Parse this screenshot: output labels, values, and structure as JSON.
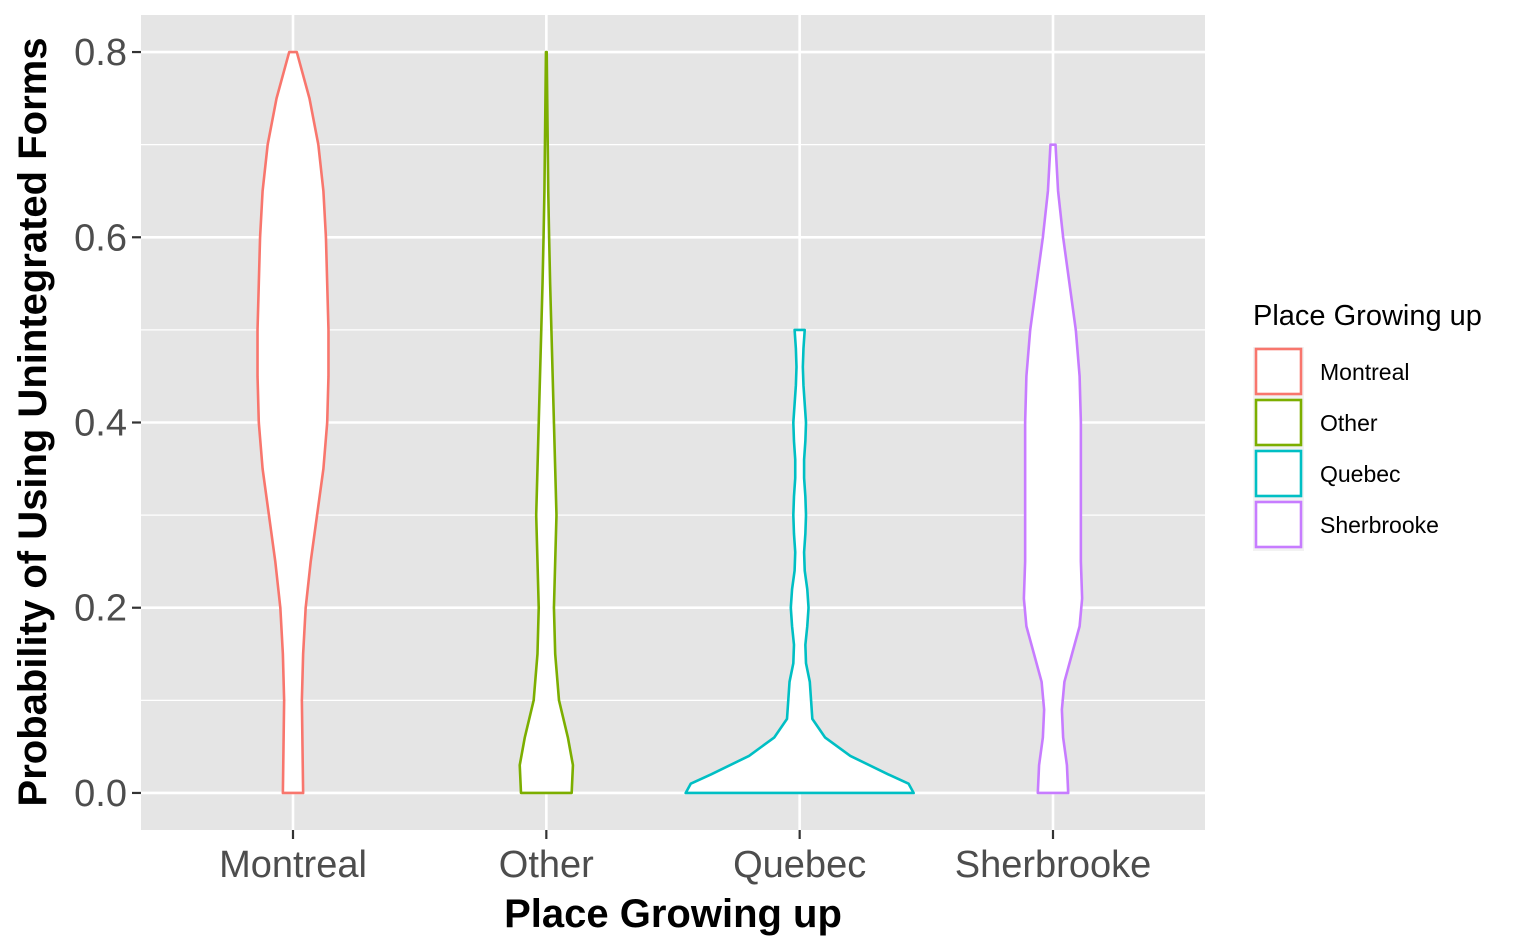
{
  "chart_data": {
    "type": "violin",
    "title": "",
    "xlabel": "Place Growing up",
    "ylabel": "Probability of Using Unintegrated Forms",
    "ylim": [
      -0.04,
      0.84
    ],
    "yticks": [
      "0.0",
      "0.2",
      "0.4",
      "0.6",
      "0.8"
    ],
    "ytick_values": [
      0,
      0.2,
      0.4,
      0.6,
      0.8
    ],
    "categories": [
      "Montreal",
      "Other",
      "Quebec",
      "Sherbrooke"
    ],
    "grid": true,
    "legend": {
      "title": "Place Growing up",
      "position": "right",
      "entries": [
        "Montreal",
        "Other",
        "Quebec",
        "Sherbrooke"
      ]
    },
    "colors": {
      "Montreal": "#f8766d",
      "Other": "#7cae00",
      "Quebec": "#00bfc4",
      "Sherbrooke": "#c77cff",
      "panel": "#e5e5e5",
      "grid": "#ffffff",
      "fill": "#ffffff"
    },
    "series": [
      {
        "name": "Montreal",
        "min": 0.0,
        "max": 0.8,
        "profile": [
          [
            0.0,
            0.08
          ],
          [
            0.05,
            0.075
          ],
          [
            0.1,
            0.07
          ],
          [
            0.15,
            0.08
          ],
          [
            0.2,
            0.1
          ],
          [
            0.25,
            0.14
          ],
          [
            0.3,
            0.19
          ],
          [
            0.35,
            0.24
          ],
          [
            0.4,
            0.27
          ],
          [
            0.45,
            0.28
          ],
          [
            0.5,
            0.28
          ],
          [
            0.55,
            0.27
          ],
          [
            0.6,
            0.26
          ],
          [
            0.65,
            0.24
          ],
          [
            0.7,
            0.2
          ],
          [
            0.75,
            0.13
          ],
          [
            0.8,
            0.03
          ]
        ]
      },
      {
        "name": "Other",
        "min": 0.0,
        "max": 0.8,
        "profile": [
          [
            0.0,
            0.2
          ],
          [
            0.03,
            0.21
          ],
          [
            0.06,
            0.17
          ],
          [
            0.1,
            0.1
          ],
          [
            0.15,
            0.07
          ],
          [
            0.2,
            0.06
          ],
          [
            0.25,
            0.07
          ],
          [
            0.3,
            0.08
          ],
          [
            0.35,
            0.07
          ],
          [
            0.4,
            0.06
          ],
          [
            0.45,
            0.05
          ],
          [
            0.5,
            0.04
          ],
          [
            0.55,
            0.03
          ],
          [
            0.6,
            0.022
          ],
          [
            0.65,
            0.015
          ],
          [
            0.7,
            0.011
          ],
          [
            0.75,
            0.007
          ],
          [
            0.8,
            0.003
          ]
        ]
      },
      {
        "name": "Quebec",
        "min": 0.0,
        "max": 0.5,
        "profile": [
          [
            0.0,
            0.9
          ],
          [
            0.01,
            0.86
          ],
          [
            0.02,
            0.7
          ],
          [
            0.04,
            0.4
          ],
          [
            0.06,
            0.2
          ],
          [
            0.08,
            0.1
          ],
          [
            0.1,
            0.09
          ],
          [
            0.12,
            0.08
          ],
          [
            0.14,
            0.05
          ],
          [
            0.16,
            0.045
          ],
          [
            0.18,
            0.06
          ],
          [
            0.2,
            0.07
          ],
          [
            0.22,
            0.06
          ],
          [
            0.24,
            0.04
          ],
          [
            0.26,
            0.035
          ],
          [
            0.28,
            0.045
          ],
          [
            0.3,
            0.05
          ],
          [
            0.32,
            0.045
          ],
          [
            0.34,
            0.035
          ],
          [
            0.36,
            0.035
          ],
          [
            0.38,
            0.045
          ],
          [
            0.4,
            0.05
          ],
          [
            0.42,
            0.04
          ],
          [
            0.44,
            0.03
          ],
          [
            0.46,
            0.025
          ],
          [
            0.48,
            0.03
          ],
          [
            0.5,
            0.04
          ]
        ]
      },
      {
        "name": "Sherbrooke",
        "min": 0.0,
        "max": 0.7,
        "profile": [
          [
            0.0,
            0.12
          ],
          [
            0.03,
            0.11
          ],
          [
            0.06,
            0.08
          ],
          [
            0.09,
            0.07
          ],
          [
            0.12,
            0.09
          ],
          [
            0.15,
            0.15
          ],
          [
            0.18,
            0.21
          ],
          [
            0.21,
            0.23
          ],
          [
            0.25,
            0.22
          ],
          [
            0.3,
            0.22
          ],
          [
            0.35,
            0.22
          ],
          [
            0.4,
            0.22
          ],
          [
            0.45,
            0.21
          ],
          [
            0.5,
            0.18
          ],
          [
            0.55,
            0.13
          ],
          [
            0.6,
            0.08
          ],
          [
            0.65,
            0.04
          ],
          [
            0.7,
            0.02
          ]
        ]
      }
    ]
  }
}
